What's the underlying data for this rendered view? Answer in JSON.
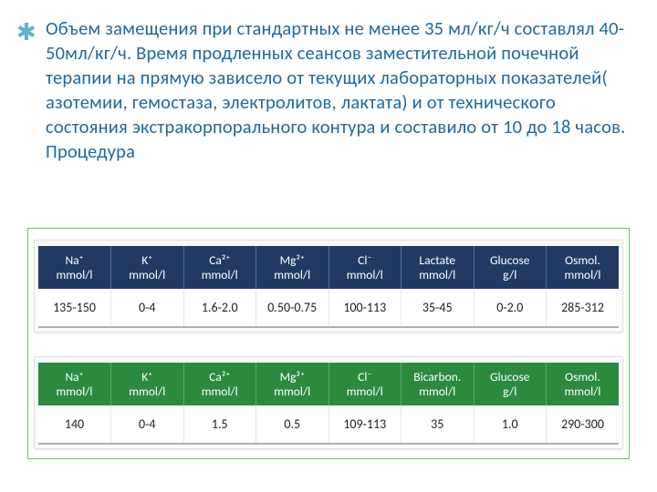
{
  "bullet_glyph": "✱",
  "paragraph": "Объем замещения при стандартных не менее 35 мл/кг/ч составлял 40-50мл/кг/ч. Время продленных сеансов заместительной почечной терапии на прямую зависело от текущих лабораторных показателей( азотемии, гемостаза, электролитов, лактата) и от технического состояния экстракорпорального контура и составило от 10 до 18 часов. Процедура",
  "table1": {
    "headers": [
      "Na⁺\nmmol/l",
      "K⁺\nmmol/l",
      "Ca²⁺\nmmol/l",
      "Mg²⁺\nmmol/l",
      "Cl⁻\nmmol/l",
      "Lactate\nmmol/l",
      "Glucose\ng/l",
      "Osmol.\nmmol/l"
    ],
    "row": [
      "135-150",
      "0-4",
      "1.6-2.0",
      "0.50-0.75",
      "100-113",
      "35-45",
      "0-2.0",
      "285-312"
    ]
  },
  "table2": {
    "headers": [
      "Na⁺\nmmol/l",
      "K⁺\nmmol/l",
      "Ca²⁺\nmmol/l",
      "Mg²⁺\nmmol/l",
      "Cl⁻\nmmol/l",
      "Bicarbon.\nmmol/l",
      "Glucose\ng/l",
      "Osmol.\nmmol/l"
    ],
    "row": [
      "140",
      "0-4",
      "1.5",
      "0.5",
      "109-113",
      "35",
      "1.0",
      "290-300"
    ]
  },
  "colors": {
    "text": "#1f6a9e",
    "bullet": "#5fb3cc",
    "navy": "#223a62",
    "green_header": "#2b8a3e",
    "frame": "#6cc06c"
  }
}
